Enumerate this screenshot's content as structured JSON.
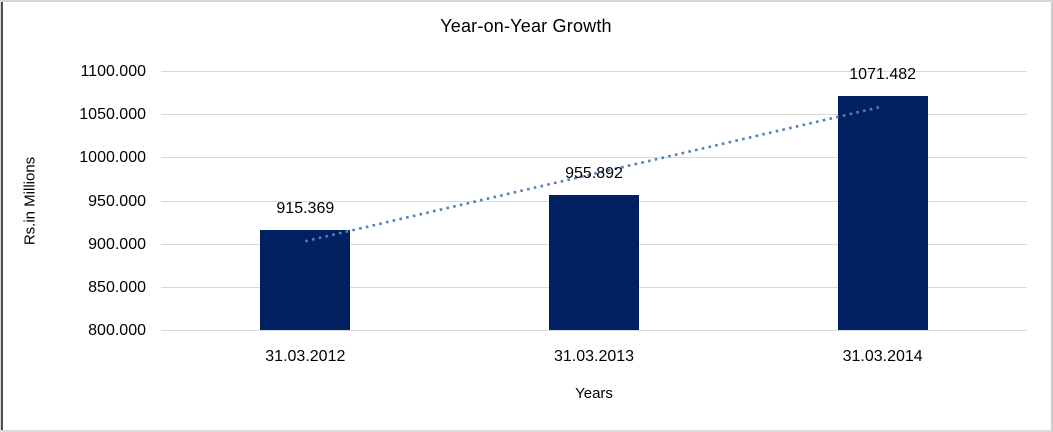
{
  "chart_data": {
    "type": "bar",
    "title": "Year-on-Year Growth",
    "xlabel": "Years",
    "ylabel": "Rs.in Millions",
    "categories": [
      "31.03.2012",
      "31.03.2013",
      "31.03.2014"
    ],
    "values": [
      915.369,
      955.892,
      1071.482
    ],
    "data_labels": [
      "915.369",
      "955.892",
      "1071.482"
    ],
    "y_ticks": [
      "1100.000",
      "1050.000",
      "1000.000",
      "950.000",
      "900.000",
      "850.000",
      "800.000"
    ],
    "ylim": [
      800,
      1100
    ],
    "y_step": 50,
    "grid": true,
    "legend": "none",
    "bar_color": "#002060",
    "gridline_color": "#d9d9d9",
    "trendline": {
      "type": "linear",
      "style": "dotted",
      "color": "#4f81bd"
    }
  }
}
